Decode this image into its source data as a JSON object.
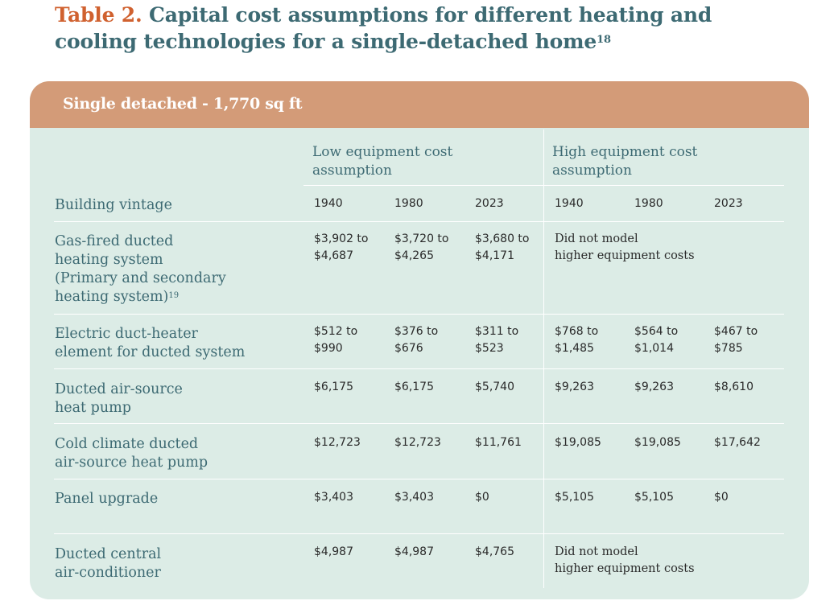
{
  "title": {
    "number": "Table 2.",
    "line1": "Capital cost assumptions for different heating and",
    "line2": "cooling technologies for a single-detached home",
    "footnote": "18"
  },
  "table": {
    "header": "Single detached - 1,770 sq ft",
    "group_low": [
      "Low equipment cost",
      "assumption"
    ],
    "group_high": [
      "High equipment cost",
      "assumption"
    ],
    "vintage_label": "Building vintage",
    "vintages": [
      "1940",
      "1980",
      "2023",
      "1940",
      "1980",
      "2023"
    ],
    "rows": [
      {
        "label": [
          "Gas-fired ducted",
          "heating system",
          "(Primary and secondary",
          "heating system)"
        ],
        "footnote": "19",
        "low": [
          [
            "$3,902 to",
            "$4,687"
          ],
          [
            "$3,720 to",
            "$4,265"
          ],
          [
            "$3,680 to",
            "$4,171"
          ]
        ],
        "high_note": [
          "Did not model",
          "higher equipment costs"
        ]
      },
      {
        "label": [
          "Electric duct-heater",
          "element for ducted system"
        ],
        "low": [
          [
            "$512 to",
            "$990"
          ],
          [
            "$376 to",
            "$676"
          ],
          [
            "$311 to",
            "$523"
          ]
        ],
        "high": [
          [
            "$768 to",
            "$1,485"
          ],
          [
            "$564 to",
            "$1,014"
          ],
          [
            "$467 to",
            "$785"
          ]
        ]
      },
      {
        "label": [
          "Ducted air-source",
          "heat pump"
        ],
        "low": [
          "$6,175",
          "$6,175",
          "$5,740"
        ],
        "high": [
          "$9,263",
          "$9,263",
          "$8,610"
        ]
      },
      {
        "label": [
          "Cold climate ducted",
          "air-source heat pump"
        ],
        "low": [
          "$12,723",
          "$12,723",
          "$11,761"
        ],
        "high": [
          "$19,085",
          "$19,085",
          "$17,642"
        ]
      },
      {
        "label": [
          "Panel upgrade"
        ],
        "low": [
          "$3,403",
          "$3,403",
          "$0"
        ],
        "high": [
          "$5,105",
          "$5,105",
          "$0"
        ]
      },
      {
        "label": [
          "Ducted central",
          "air-conditioner"
        ],
        "low": [
          "$4,987",
          "$4,987",
          "$4,765"
        ],
        "high_note": [
          "Did not model",
          "higher equipment costs"
        ]
      }
    ]
  }
}
